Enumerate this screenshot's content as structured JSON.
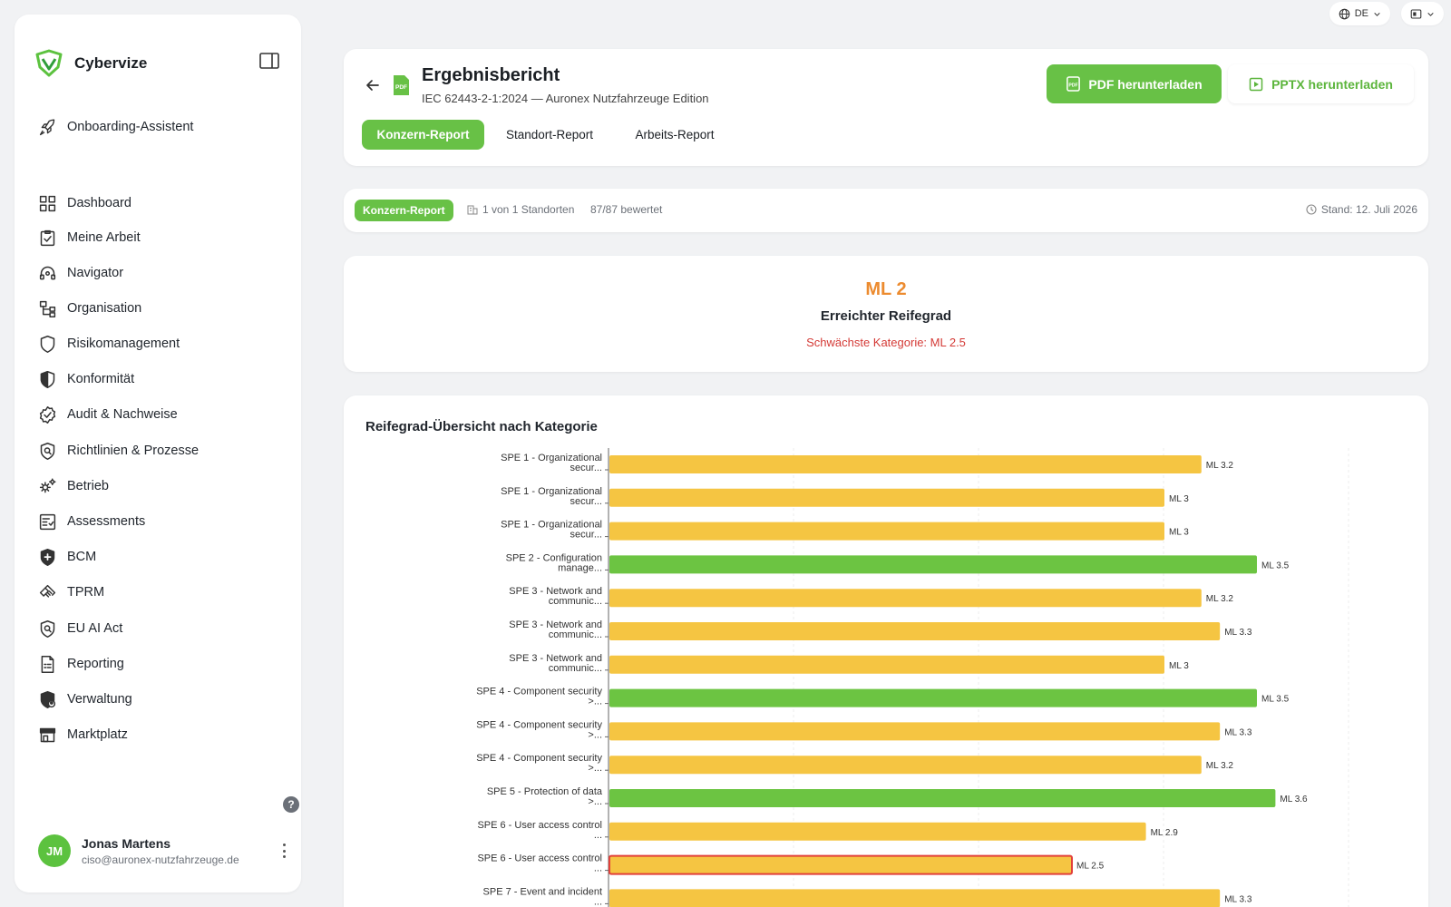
{
  "topbar": {
    "language": "DE"
  },
  "sidebar": {
    "brand": "Cybervize",
    "onboarding": "Onboarding-Assistent",
    "items": [
      {
        "label": "Dashboard",
        "icon": "grid-icon"
      },
      {
        "label": "Meine Arbeit",
        "icon": "clipboard-check-icon"
      },
      {
        "label": "Navigator",
        "icon": "headset-icon"
      },
      {
        "label": "Organisation",
        "icon": "org-chart-icon"
      },
      {
        "label": "Risikomanagement",
        "icon": "shield-outline-icon"
      },
      {
        "label": "Konformität",
        "icon": "shield-half-icon"
      },
      {
        "label": "Audit & Nachweise",
        "icon": "badge-check-icon"
      },
      {
        "label": "Richtlinien & Prozesse",
        "icon": "shield-search-icon"
      },
      {
        "label": "Betrieb",
        "icon": "gears-icon"
      },
      {
        "label": "Assessments",
        "icon": "checklist-icon"
      },
      {
        "label": "BCM",
        "icon": "shield-plus-icon"
      },
      {
        "label": "TPRM",
        "icon": "handshake-icon"
      },
      {
        "label": "EU AI Act",
        "icon": "shield-search-icon"
      },
      {
        "label": "Reporting",
        "icon": "report-icon"
      },
      {
        "label": "Verwaltung",
        "icon": "shield-user-icon"
      },
      {
        "label": "Marktplatz",
        "icon": "store-icon"
      }
    ],
    "user": {
      "initials": "JM",
      "name": "Jonas Martens",
      "email": "ciso@auronex-nutzfahrzeuge.de"
    }
  },
  "header": {
    "title": "Ergebnisbericht",
    "subtitle": "IEC 62443-2-1:2024 — Auronex Nutzfahrzeuge Edition",
    "pdf_button": "PDF herunterladen",
    "pptx_button": "PPTX herunterladen",
    "tabs": [
      "Konzern-Report",
      "Standort-Report",
      "Arbeits-Report"
    ]
  },
  "status": {
    "badge": "Konzern-Report",
    "locations": "1 von 1 Standorten",
    "rated": "87/87 bewertet",
    "date": "Stand: 12. Juli 2026"
  },
  "maturity": {
    "value": "ML 2",
    "label": "Erreichter Reifegrad",
    "weakest": "Schwächste Kategorie: ML 2.5"
  },
  "chart_data": {
    "type": "bar",
    "orientation": "horizontal",
    "title": "Reifegrad-Übersicht nach Kategorie",
    "categories": [
      [
        "SPE 1 - Organizational",
        "secur..."
      ],
      [
        "SPE 1 - Organizational",
        "secur..."
      ],
      [
        "SPE 1 - Organizational",
        "secur..."
      ],
      [
        "SPE 2 - Configuration",
        "manage..."
      ],
      [
        "SPE 3 - Network and",
        "communic..."
      ],
      [
        "SPE 3 - Network and",
        "communic..."
      ],
      [
        "SPE 3 - Network and",
        "communic..."
      ],
      [
        "SPE 4 - Component security",
        ">..."
      ],
      [
        "SPE 4 - Component security",
        ">..."
      ],
      [
        "SPE 4 - Component security",
        ">..."
      ],
      [
        "SPE 5 - Protection of data",
        ">..."
      ],
      [
        "SPE 6 - User access control",
        "..."
      ],
      [
        "SPE 6 - User access control",
        "..."
      ],
      [
        "SPE 7 - Event and incident",
        "..."
      ]
    ],
    "values": [
      3.2,
      3,
      3,
      3.5,
      3.2,
      3.3,
      3,
      3.5,
      3.3,
      3.2,
      3.6,
      2.9,
      2.5,
      3.3
    ],
    "labels": [
      "ML 3.2",
      "ML 3",
      "ML 3",
      "ML 3.5",
      "ML 3.2",
      "ML 3.3",
      "ML 3",
      "ML 3.5",
      "ML 3.3",
      "ML 3.2",
      "ML 3.6",
      "ML 2.9",
      "ML 2.5",
      "ML 3.3"
    ],
    "xlim": [
      0,
      4
    ],
    "colors": {
      "green": "#6cc442",
      "yellow": "#f5c542",
      "weakest_border": "#e2403a"
    },
    "green_threshold": 3.5,
    "highlight_index": 12
  }
}
